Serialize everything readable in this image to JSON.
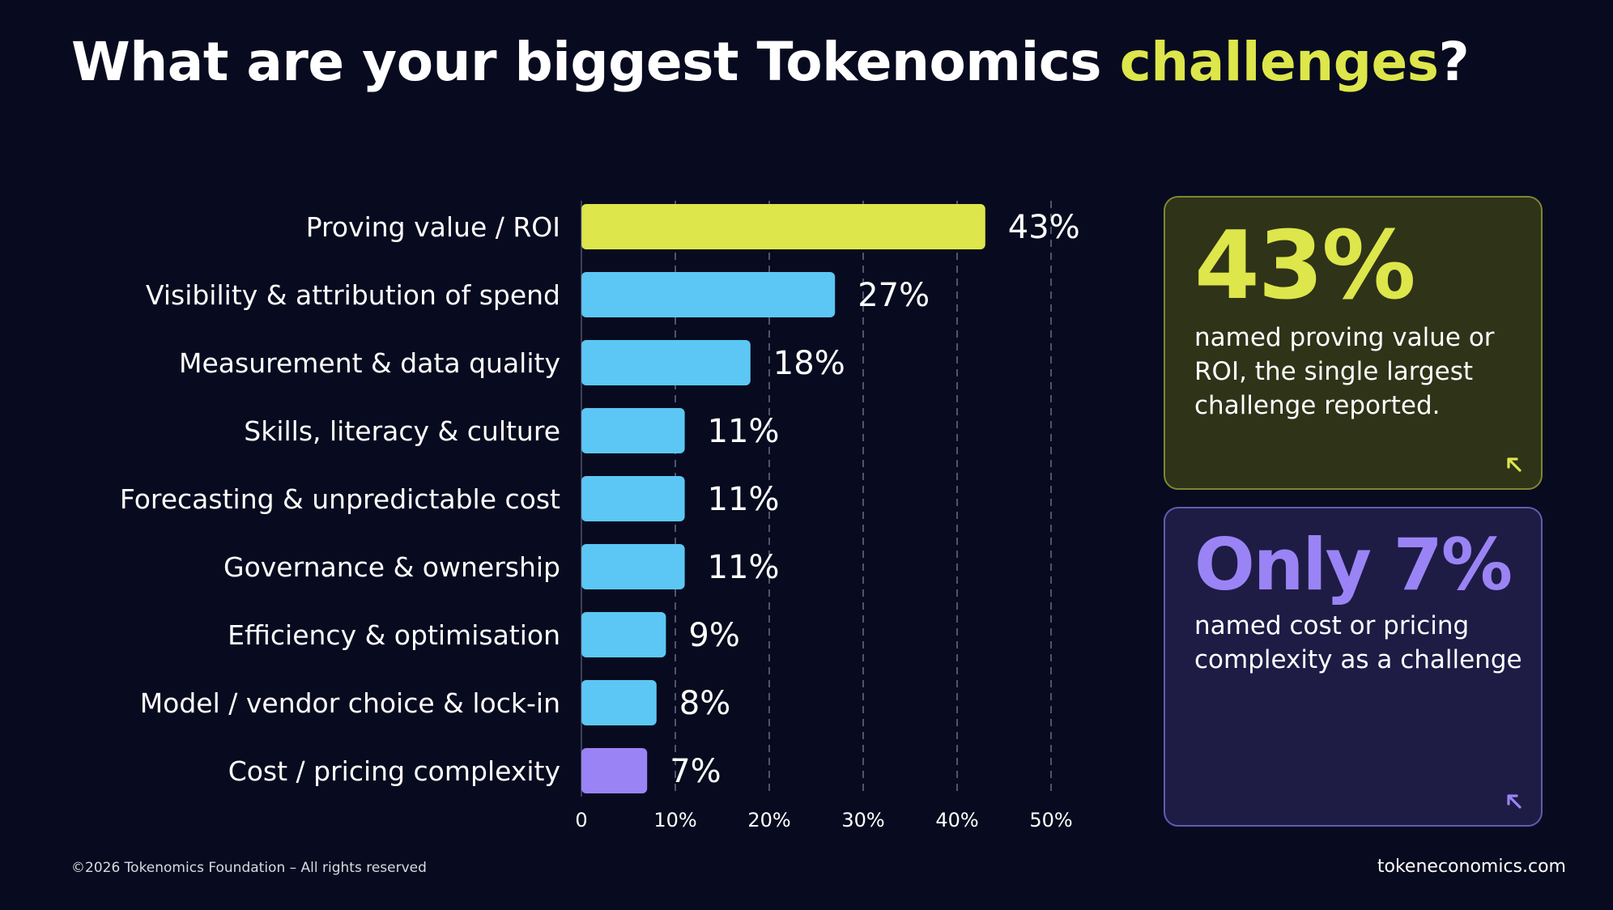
{
  "title": {
    "text_start": "What are your biggest Tokenomics ",
    "text_accent": "challenges",
    "text_end": "?"
  },
  "chart_data": {
    "type": "bar",
    "orientation": "horizontal",
    "categories": [
      "Proving value / ROI",
      "Visibility & attribution of spend",
      "Measurement & data quality",
      "Skills, literacy & culture",
      "Forecasting & unpredictable cost",
      "Governance & ownership",
      "Efficiency & optimisation",
      "Model / vendor choice & lock-in",
      "Cost / pricing complexity"
    ],
    "values": [
      43,
      27,
      18,
      11,
      11,
      11,
      9,
      8,
      7
    ],
    "value_labels": [
      "43%",
      "27%",
      "18%",
      "11%",
      "11%",
      "11%",
      "9%",
      "8%",
      "7%"
    ],
    "bar_colors": [
      "#dde64a",
      "#5cc7f4",
      "#5cc7f4",
      "#5cc7f4",
      "#5cc7f4",
      "#5cc7f4",
      "#5cc7f4",
      "#5cc7f4",
      "#9a84f5"
    ],
    "xlim": [
      0,
      50
    ],
    "xticks": [
      0,
      10,
      20,
      30,
      40,
      50
    ],
    "xtick_labels": [
      "0",
      "10%",
      "20%",
      "30%",
      "40%",
      "50%"
    ],
    "grid": "vertical dashed",
    "title": "",
    "xlabel": "",
    "ylabel": ""
  },
  "cards": [
    {
      "big": "43%",
      "text": "named proving value or ROI, the single largest challenge reported.",
      "accent": "#dde64a",
      "icon": "arrow-up-left-icon"
    },
    {
      "big": "Only 7%",
      "text": "named cost or pricing complexity as a challenge",
      "accent": "#9a84f5",
      "icon": "arrow-up-left-icon"
    }
  ],
  "footer": {
    "copyright": "©2026 Tokenomics Foundation – All rights reserved",
    "site": "tokeneconomics.com"
  },
  "colors": {
    "background": "#080b1f",
    "highlight": "#dde64a",
    "bar": "#5cc7f4",
    "purple": "#9a84f5"
  }
}
